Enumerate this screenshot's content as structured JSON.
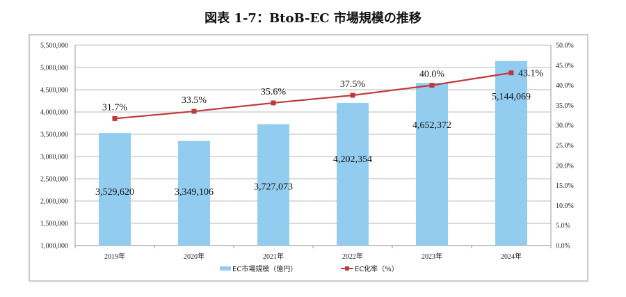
{
  "chart_data": {
    "type": "bar",
    "title": "図表 1-7：BtoB-EC 市場規模の推移",
    "categories": [
      "2019年",
      "2020年",
      "2021年",
      "2022年",
      "2023年",
      "2024年"
    ],
    "series": [
      {
        "name": "EC市場規模（億円）",
        "type": "bar",
        "axis": "left",
        "color": "#92cdf0",
        "values": [
          3529620,
          3349106,
          3727073,
          4202354,
          4652372,
          5144069
        ],
        "labels": [
          "3,529,620",
          "3,349,106",
          "3,727,073",
          "4,202,354",
          "4,652,372",
          "5,144,069"
        ]
      },
      {
        "name": "EC化率（%）",
        "type": "line",
        "axis": "right",
        "color": "#c0393b",
        "values": [
          31.7,
          33.5,
          35.6,
          37.5,
          40.0,
          43.1
        ],
        "labels": [
          "31.7%",
          "33.5%",
          "35.6%",
          "37.5%",
          "40.0%",
          "43.1%"
        ]
      }
    ],
    "y_left": {
      "ylim": [
        1000000,
        5500000
      ],
      "ticks": [
        "1,000,000",
        "1,500,000",
        "2,000,000",
        "2,500,000",
        "3,000,000",
        "3,500,000",
        "4,000,000",
        "4,500,000",
        "5,000,000",
        "5,500,000"
      ]
    },
    "y_right": {
      "ylim": [
        0,
        50
      ],
      "ticks": [
        "0.0%",
        "5.0%",
        "10.0%",
        "15.0%",
        "20.0%",
        "25.0%",
        "30.0%",
        "35.0%",
        "40.0%",
        "45.0%",
        "50.0%"
      ]
    },
    "grid": true,
    "legend": "bottom"
  }
}
